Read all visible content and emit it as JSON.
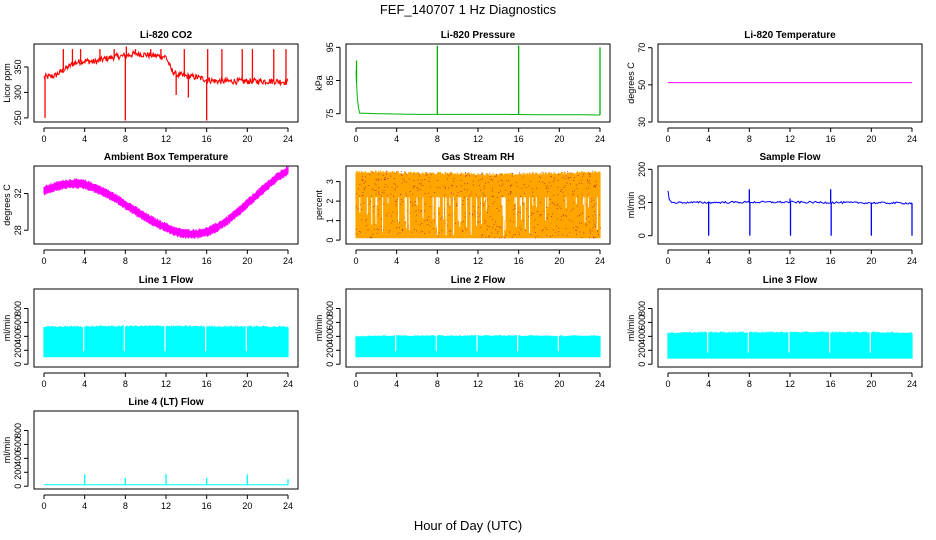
{
  "title": "FEF_140707  1 Hz Diagnostics",
  "xlabel": "Hour of Day (UTC)",
  "chart_data": [
    {
      "type": "line",
      "title": "Li-820 CO2",
      "ylabel": "Licor ppm",
      "xlim": [
        0,
        24
      ],
      "ylim": [
        242,
        395
      ],
      "xticks": [
        0,
        4,
        8,
        12,
        16,
        20,
        24
      ],
      "yticks": [
        250,
        300,
        350
      ],
      "color": "#ff0000",
      "series": [
        {
          "x": [
            0,
            1,
            2,
            3,
            4,
            5,
            6,
            7,
            8,
            9,
            10,
            11,
            12,
            12.5,
            13,
            14,
            15,
            16,
            17,
            18,
            19,
            20,
            21,
            22,
            23,
            24
          ],
          "y": [
            330,
            332,
            345,
            358,
            362,
            360,
            366,
            370,
            372,
            376,
            374,
            372,
            370,
            345,
            335,
            332,
            330,
            325,
            322,
            322,
            322,
            322,
            322,
            322,
            322,
            320
          ]
        }
      ],
      "spikes": [
        {
          "x": 0.1,
          "y": 250
        },
        {
          "x": 1.9,
          "y": 385
        },
        {
          "x": 2.8,
          "y": 385
        },
        {
          "x": 3.6,
          "y": 385
        },
        {
          "x": 5.5,
          "y": 385
        },
        {
          "x": 6.9,
          "y": 385
        },
        {
          "x": 8.0,
          "y": 245
        },
        {
          "x": 8.1,
          "y": 390
        },
        {
          "x": 9.0,
          "y": 385
        },
        {
          "x": 10.5,
          "y": 385
        },
        {
          "x": 11.5,
          "y": 385
        },
        {
          "x": 13.0,
          "y": 295
        },
        {
          "x": 13.8,
          "y": 385
        },
        {
          "x": 14.2,
          "y": 290
        },
        {
          "x": 16.0,
          "y": 245
        },
        {
          "x": 16.1,
          "y": 385
        },
        {
          "x": 17.5,
          "y": 385
        },
        {
          "x": 19.5,
          "y": 385
        },
        {
          "x": 20.5,
          "y": 385
        },
        {
          "x": 22.6,
          "y": 385
        },
        {
          "x": 23.8,
          "y": 385
        }
      ]
    },
    {
      "type": "line",
      "title": "Li-820 Pressure",
      "ylabel": "kPa",
      "xlim": [
        0,
        24
      ],
      "ylim": [
        72.5,
        96
      ],
      "xticks": [
        0,
        4,
        8,
        12,
        16,
        20,
        24
      ],
      "yticks": [
        75,
        85,
        95
      ],
      "color": "#00b400",
      "series": [
        {
          "x": [
            0,
            0.1,
            0.3,
            2,
            6,
            10,
            14,
            18,
            22,
            24
          ],
          "y": [
            88,
            81,
            75.2,
            75,
            74.8,
            74.8,
            74.8,
            74.7,
            74.7,
            74.6
          ]
        }
      ],
      "spikes": [
        {
          "x": 0.05,
          "y": 91
        },
        {
          "x": 8.0,
          "y": 95.5
        },
        {
          "x": 16.0,
          "y": 95.5
        },
        {
          "x": 24.0,
          "y": 95
        }
      ]
    },
    {
      "type": "line",
      "title": "Li-820 Temperature",
      "ylabel": "degrees C",
      "xlim": [
        0,
        24
      ],
      "ylim": [
        30,
        72
      ],
      "xticks": [
        0,
        4,
        8,
        12,
        16,
        20,
        24
      ],
      "yticks": [
        30,
        50,
        70
      ],
      "color": "#ff00ff",
      "series": [
        {
          "x": [
            0,
            24
          ],
          "y": [
            51.2,
            51.2
          ]
        }
      ]
    },
    {
      "type": "line",
      "title": "Ambient Box Temperature",
      "ylabel": "degrees C",
      "xlim": [
        0,
        24
      ],
      "ylim": [
        26.5,
        35
      ],
      "xticks": [
        0,
        4,
        8,
        12,
        16,
        20,
        24
      ],
      "yticks": [
        28,
        32
      ],
      "color": "#ff00ff",
      "band": 0.55,
      "series": [
        {
          "x": [
            0,
            1,
            2,
            3,
            4,
            5,
            6,
            7,
            8,
            9,
            10,
            11,
            12,
            13,
            14,
            15,
            16,
            17,
            18,
            19,
            20,
            21,
            22,
            23,
            24
          ],
          "y": [
            32.3,
            32.7,
            33.0,
            33.1,
            33.0,
            32.6,
            32.1,
            31.5,
            30.8,
            30.1,
            29.4,
            28.8,
            28.3,
            27.8,
            27.6,
            27.6,
            27.8,
            28.3,
            29.0,
            29.9,
            30.9,
            31.9,
            32.9,
            33.8,
            34.5
          ]
        }
      ]
    },
    {
      "type": "area",
      "title": "Gas Stream RH",
      "ylabel": "percent",
      "xlim": [
        0,
        24
      ],
      "ylim": [
        -0.2,
        3.8
      ],
      "xticks": [
        0,
        4,
        8,
        12,
        16,
        20,
        24
      ],
      "yticks": [
        0,
        1,
        2,
        3
      ],
      "color": "#ffa500",
      "dots": "#b22222",
      "series": [
        {
          "x": [
            0,
            2,
            4,
            6,
            8,
            10,
            12,
            14,
            16,
            18,
            20,
            22,
            24
          ],
          "y": [
            3.55,
            3.6,
            3.55,
            3.5,
            3.5,
            3.5,
            3.45,
            3.45,
            3.45,
            3.5,
            3.5,
            3.55,
            3.6
          ]
        }
      ],
      "ybase": 0.1
    },
    {
      "type": "line",
      "title": "Sample Flow",
      "ylabel": "ml/min",
      "xlim": [
        0,
        24
      ],
      "ylim": [
        -25,
        210
      ],
      "xticks": [
        0,
        4,
        8,
        12,
        16,
        20,
        24
      ],
      "yticks": [
        0,
        100,
        200
      ],
      "color": "#0000ff",
      "series": [
        {
          "x": [
            0,
            0.1,
            0.3,
            4,
            8,
            12,
            16,
            20,
            24
          ],
          "y": [
            135,
            110,
            100,
            100,
            101,
            101,
            100,
            99,
            98
          ]
        }
      ],
      "spikes": [
        {
          "x": 4.0,
          "y": 0
        },
        {
          "x": 8.0,
          "y": 140
        },
        {
          "x": 8.05,
          "y": 0
        },
        {
          "x": 12.0,
          "y": 112
        },
        {
          "x": 12.05,
          "y": 0
        },
        {
          "x": 16.0,
          "y": 140
        },
        {
          "x": 16.05,
          "y": 0
        },
        {
          "x": 20.0,
          "y": 0
        },
        {
          "x": 24.0,
          "y": 0
        }
      ]
    },
    {
      "type": "area",
      "title": "Line 1 Flow",
      "ylabel": "ml/min",
      "xlim": [
        0,
        24
      ],
      "ylim": [
        -40,
        1080
      ],
      "xticks": [
        0,
        4,
        8,
        12,
        16,
        20,
        24
      ],
      "yticks": [
        0,
        200,
        400,
        600,
        800
      ],
      "color": "#00ffff",
      "series": [
        {
          "x": [
            0,
            4,
            8,
            12,
            16,
            20,
            24
          ],
          "y": [
            550,
            555,
            560,
            560,
            555,
            555,
            550
          ]
        }
      ],
      "ybase": 100,
      "notches": [
        3.9,
        7.9,
        11.9,
        15.9,
        19.9
      ]
    },
    {
      "type": "area",
      "title": "Line 2 Flow",
      "ylabel": "ml/min",
      "xlim": [
        0,
        24
      ],
      "ylim": [
        -40,
        1080
      ],
      "xticks": [
        0,
        4,
        8,
        12,
        16,
        20,
        24
      ],
      "yticks": [
        0,
        200,
        400,
        600,
        800
      ],
      "color": "#00ffff",
      "series": [
        {
          "x": [
            0,
            4,
            8,
            12,
            16,
            20,
            24
          ],
          "y": [
            410,
            420,
            420,
            420,
            420,
            415,
            420
          ]
        }
      ],
      "ybase": 100,
      "notches": [
        3.9,
        7.9,
        11.9,
        15.9,
        19.9
      ]
    },
    {
      "type": "area",
      "title": "Line 3 Flow",
      "ylabel": "ml/min",
      "xlim": [
        0,
        24
      ],
      "ylim": [
        -40,
        1080
      ],
      "xticks": [
        0,
        4,
        8,
        12,
        16,
        20,
        24
      ],
      "yticks": [
        0,
        200,
        400,
        600,
        800
      ],
      "color": "#00ffff",
      "series": [
        {
          "x": [
            0,
            4,
            8,
            12,
            16,
            20,
            24
          ],
          "y": [
            460,
            470,
            470,
            470,
            470,
            470,
            460
          ]
        }
      ],
      "ybase": 80,
      "notches": [
        3.9,
        7.9,
        11.9,
        15.9,
        19.9
      ]
    },
    {
      "type": "line",
      "title": "Line 4 (LT) Flow",
      "ylabel": "ml/min",
      "xlim": [
        0,
        24
      ],
      "ylim": [
        -40,
        1080
      ],
      "xticks": [
        0,
        4,
        8,
        12,
        16,
        20,
        24
      ],
      "yticks": [
        0,
        200,
        400,
        600,
        800
      ],
      "color": "#00ffff",
      "series": [
        {
          "x": [
            0,
            24
          ],
          "y": [
            20,
            20
          ]
        }
      ],
      "spikes": [
        {
          "x": 4.0,
          "y": 170
        },
        {
          "x": 8.0,
          "y": 120
        },
        {
          "x": 12.0,
          "y": 175
        },
        {
          "x": 16.0,
          "y": 120
        },
        {
          "x": 20.0,
          "y": 170
        },
        {
          "x": 24.0,
          "y": 100
        }
      ]
    }
  ]
}
